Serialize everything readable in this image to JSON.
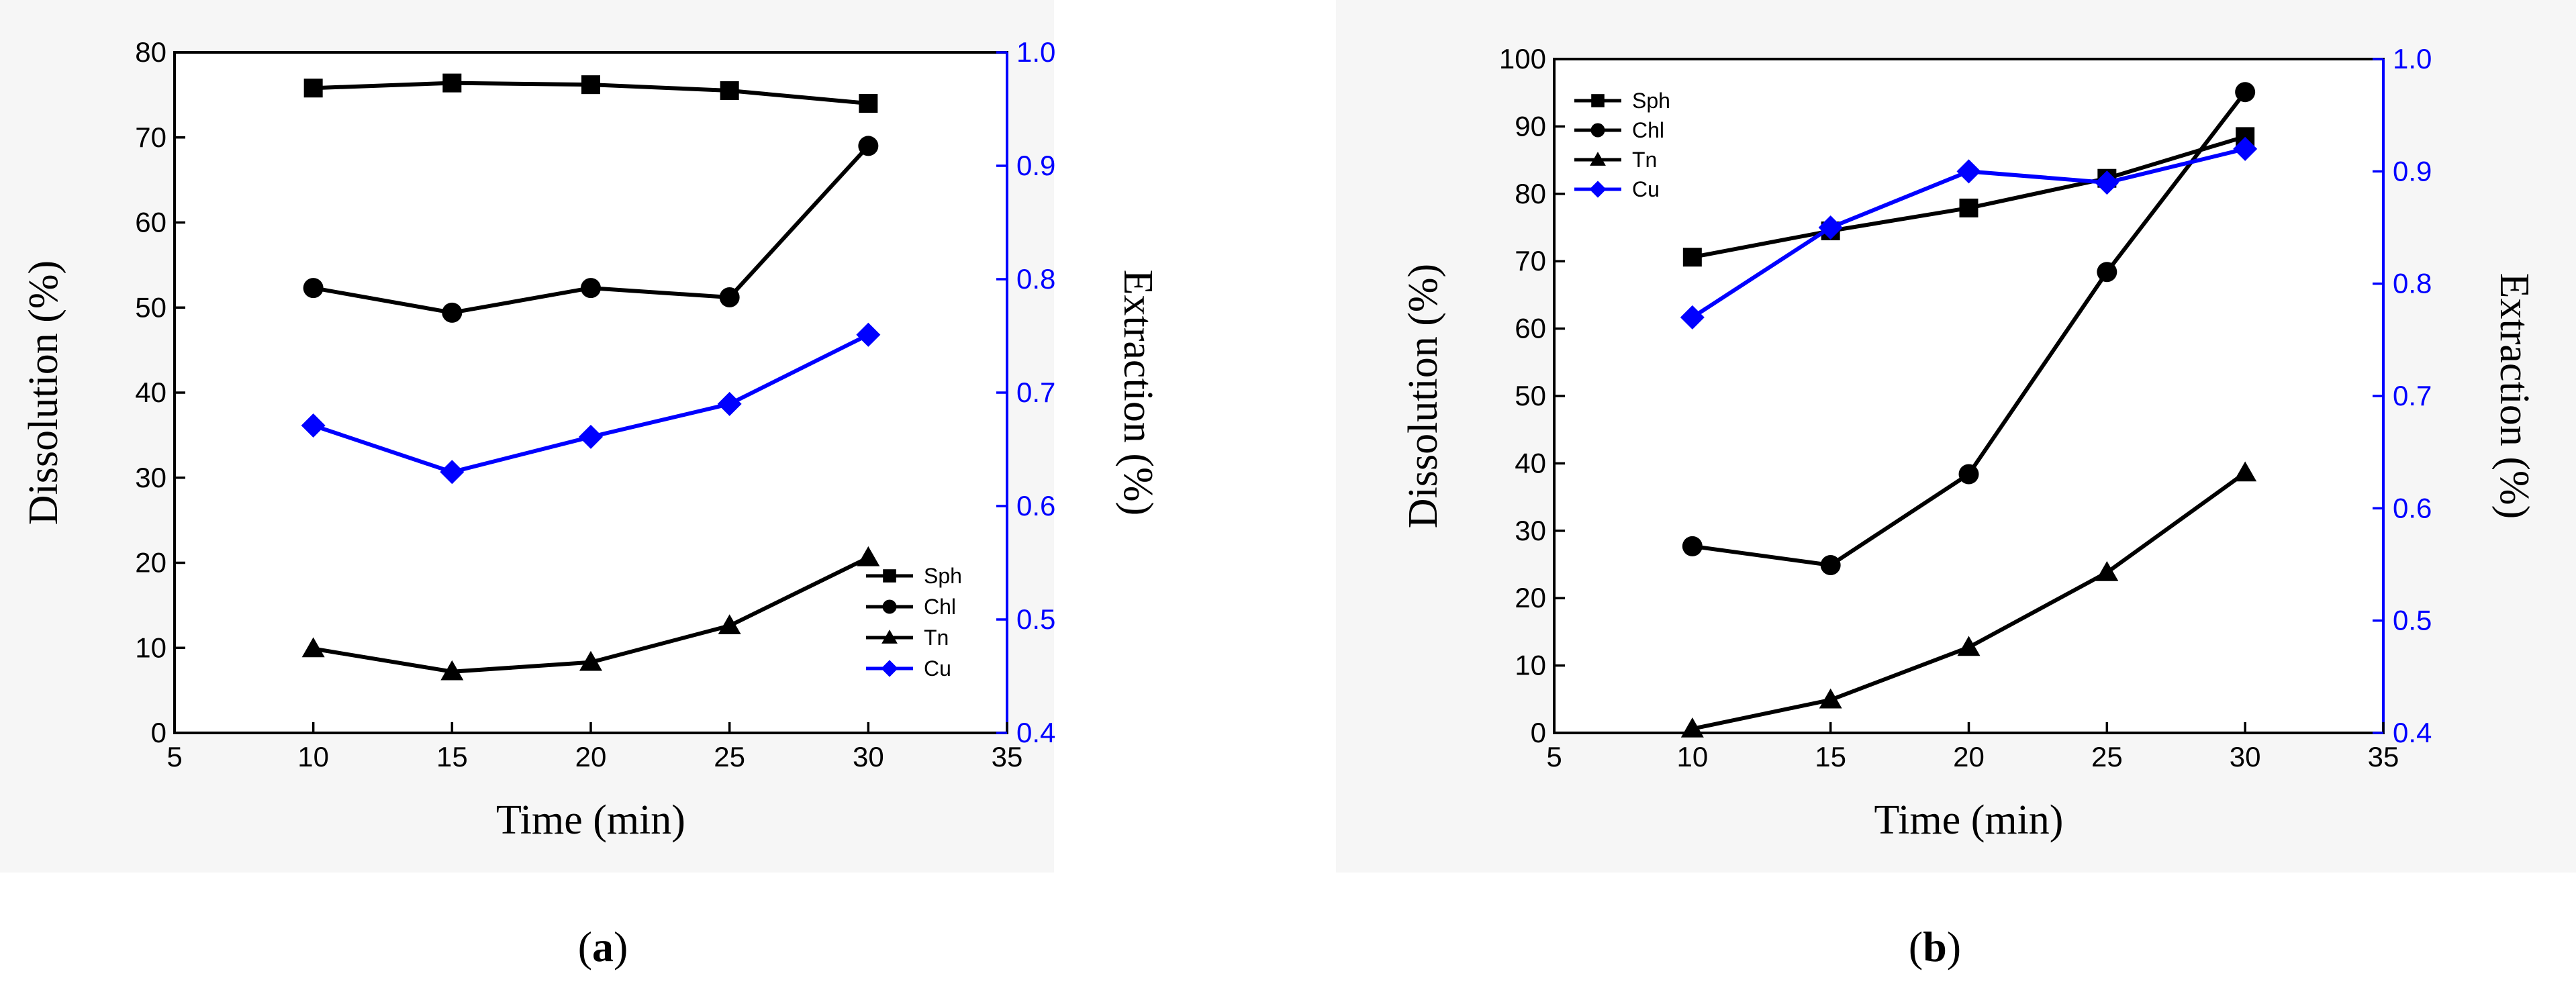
{
  "chart_data": [
    {
      "type": "line",
      "panel_label": "a",
      "caption_open": "(",
      "caption_close": ")",
      "xlabel": "Time (min)",
      "ylabel": "Dissolution (%)",
      "y2label": "Extraction (%)",
      "xlim": [
        5,
        35
      ],
      "ylim": [
        0,
        80
      ],
      "y2lim": [
        0.4,
        1.0
      ],
      "x_ticks": [
        "5",
        "10",
        "15",
        "20",
        "25",
        "30",
        "35"
      ],
      "y_ticks": [
        "0",
        "10",
        "20",
        "30",
        "40",
        "50",
        "60",
        "70",
        "80"
      ],
      "y2_ticks": [
        "0.4",
        "0.5",
        "0.6",
        "0.7",
        "0.8",
        "0.9",
        "1.0"
      ],
      "legend_position": "bottom-right",
      "x": [
        10,
        15,
        20,
        25,
        30
      ],
      "series": [
        {
          "name": "Sph",
          "axis": "left",
          "marker": "square",
          "color": "#000000",
          "values": [
            75.8,
            76.4,
            76.2,
            75.5,
            74.0
          ]
        },
        {
          "name": "Chl",
          "axis": "left",
          "marker": "circle",
          "color": "#000000",
          "values": [
            52.3,
            49.4,
            52.3,
            51.2,
            69.0
          ]
        },
        {
          "name": "Tn",
          "axis": "left",
          "marker": "triangle",
          "color": "#000000",
          "values": [
            9.9,
            7.2,
            8.3,
            12.6,
            20.6
          ]
        },
        {
          "name": "Cu",
          "axis": "right",
          "marker": "diamond",
          "color": "#0000ff",
          "values": [
            0.671,
            0.63,
            0.661,
            0.69,
            0.751
          ]
        }
      ]
    },
    {
      "type": "line",
      "panel_label": "b",
      "caption_open": "(",
      "caption_close": ")",
      "xlabel": "Time (min)",
      "ylabel": "Dissolution (%)",
      "y2label": "Extraction (%)",
      "xlim": [
        5,
        35
      ],
      "ylim": [
        0,
        100
      ],
      "y2lim": [
        0.4,
        1.0
      ],
      "x_ticks": [
        "5",
        "10",
        "15",
        "20",
        "25",
        "30",
        "35"
      ],
      "y_ticks": [
        "0",
        "10",
        "20",
        "30",
        "40",
        "50",
        "60",
        "70",
        "80",
        "90",
        "100"
      ],
      "y2_ticks": [
        "0.4",
        "0.5",
        "0.6",
        "0.7",
        "0.8",
        "0.9",
        "1.0"
      ],
      "legend_position": "top-left",
      "x": [
        10,
        15,
        20,
        25,
        30
      ],
      "series": [
        {
          "name": "Sph",
          "axis": "left",
          "marker": "square",
          "color": "#000000",
          "values": [
            70.6,
            74.5,
            77.9,
            82.3,
            88.5
          ]
        },
        {
          "name": "Chl",
          "axis": "left",
          "marker": "circle",
          "color": "#000000",
          "values": [
            27.7,
            24.9,
            38.4,
            68.4,
            95.1
          ]
        },
        {
          "name": "Tn",
          "axis": "left",
          "marker": "triangle",
          "color": "#000000",
          "values": [
            0.6,
            4.9,
            12.7,
            23.8,
            38.6
          ]
        },
        {
          "name": "Cu",
          "axis": "right",
          "marker": "diamond",
          "color": "#0000ff",
          "values": [
            0.77,
            0.85,
            0.9,
            0.89,
            0.92
          ]
        }
      ]
    }
  ]
}
